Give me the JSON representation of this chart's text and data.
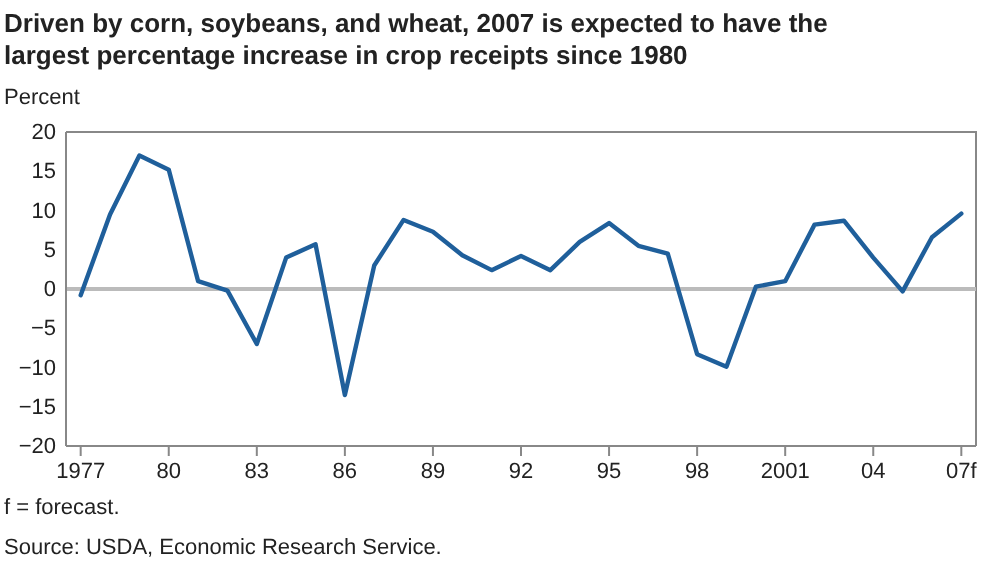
{
  "chart_data": {
    "type": "line",
    "title": "Driven by corn, soybeans, and wheat, 2007 is expected to have the largest percentage increase in crop receipts since 1980",
    "ylabel": "Percent",
    "categories": [
      "1977",
      null,
      null,
      "80",
      null,
      null,
      "83",
      null,
      null,
      "86",
      null,
      null,
      "89",
      null,
      null,
      "92",
      null,
      null,
      "95",
      null,
      null,
      "98",
      null,
      null,
      "2001",
      null,
      null,
      "04",
      null,
      null,
      "07f"
    ],
    "series": [
      {
        "color": "#1f5f9b",
        "values": [
          -0.8,
          9.5,
          17,
          15.2,
          1,
          -0.2,
          -7,
          4,
          5.7,
          -13.5,
          3,
          8.8,
          7.3,
          4.3,
          2.4,
          4.2,
          2.4,
          6,
          8.4,
          5.5,
          4.5,
          -8.3,
          -9.9,
          0.3,
          1,
          8.2,
          8.7,
          4,
          -0.3,
          6.6,
          9.6
        ]
      }
    ],
    "ylim": [
      -20,
      20
    ],
    "yticks": [
      -20,
      -15,
      -10,
      -5,
      0,
      5,
      10,
      15,
      20
    ],
    "ref_lines": [
      {
        "axis": "y",
        "value": 0,
        "color": "#bbbbbb"
      }
    ],
    "grid": false,
    "marker": "none",
    "line_style": "solid",
    "annotations": [
      "f = forecast.",
      "Source: USDA, Economic Research Service."
    ]
  }
}
